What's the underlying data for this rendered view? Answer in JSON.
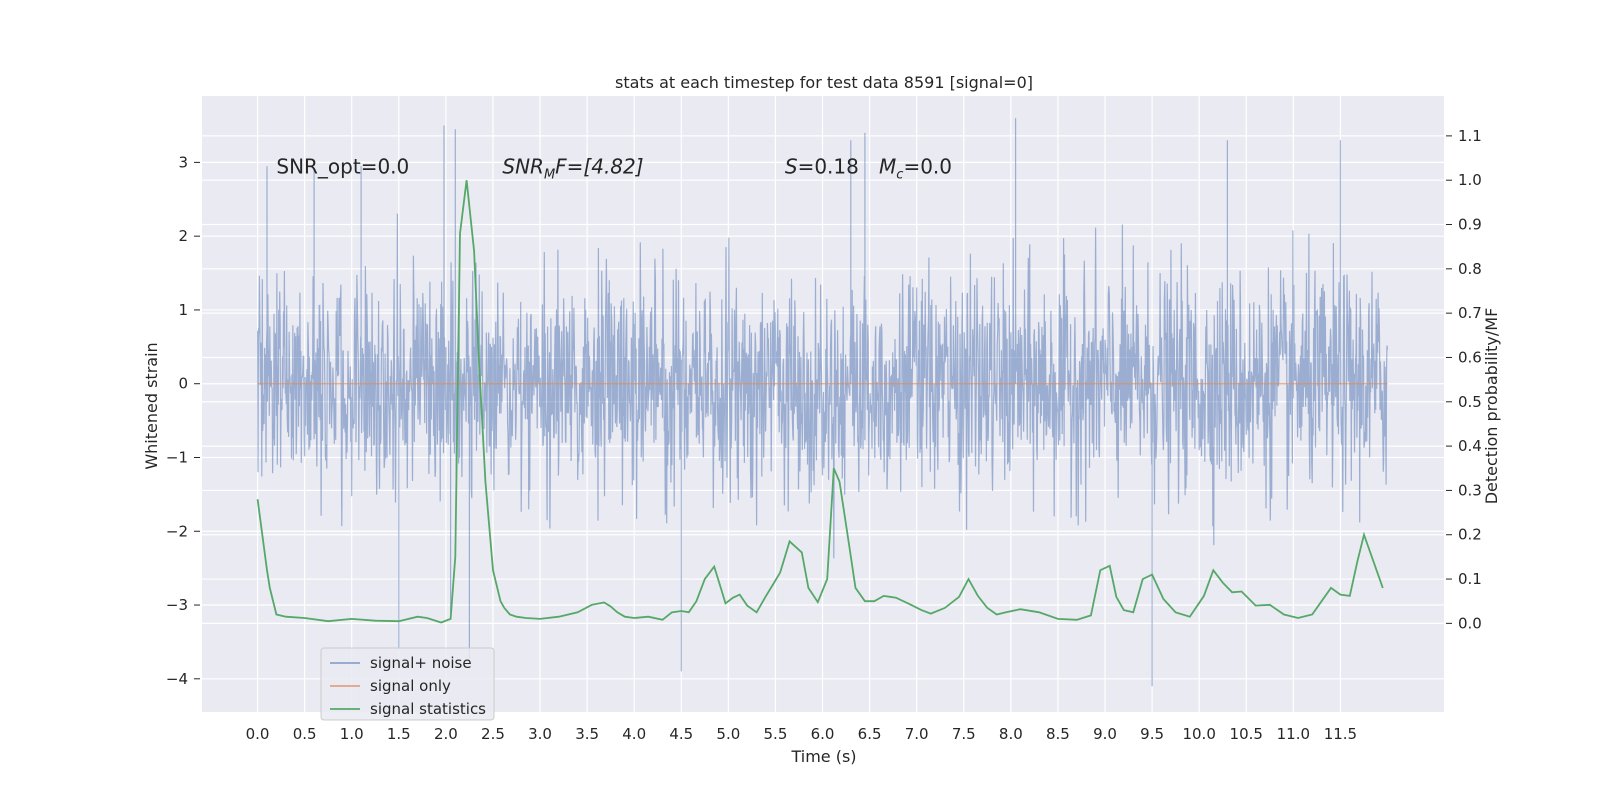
{
  "chart_data": {
    "type": "line",
    "title": "stats at each timestep for test data 8591 [signal=0]",
    "xlabel": "Time (s)",
    "ylabel": "Whitened strain",
    "y2label": "Detection probability/MF",
    "xlim": [
      -0.59,
      12.6
    ],
    "ylim": [
      -4.45,
      3.9
    ],
    "y2lim": [
      -0.2,
      1.19
    ],
    "xticks": [
      0.0,
      0.5,
      1.0,
      1.5,
      2.0,
      2.5,
      3.0,
      3.5,
      4.0,
      4.5,
      5.0,
      5.5,
      6.0,
      6.5,
      7.0,
      7.5,
      8.0,
      8.5,
      9.0,
      9.5,
      10.0,
      10.5,
      11.0,
      11.5
    ],
    "xticklabels": [
      "0.0",
      "0.5",
      "1.0",
      "1.5",
      "2.0",
      "2.5",
      "3.0",
      "3.5",
      "4.0",
      "4.5",
      "5.0",
      "5.5",
      "6.0",
      "6.5",
      "7.0",
      "7.5",
      "8.0",
      "8.5",
      "9.0",
      "9.5",
      "10.0",
      "10.5",
      "11.0",
      "11.5"
    ],
    "yticks": [
      -4,
      -3,
      -2,
      -1,
      0,
      1,
      2,
      3
    ],
    "yticklabels": [
      "−4",
      "−3",
      "−2",
      "−1",
      "0",
      "1",
      "2",
      "3"
    ],
    "y2ticks": [
      0.0,
      0.1,
      0.2,
      0.3,
      0.4,
      0.5,
      0.6,
      0.7,
      0.8,
      0.9,
      1.0,
      1.1
    ],
    "y2ticklabels": [
      "0.0",
      "0.1",
      "0.2",
      "0.3",
      "0.4",
      "0.5",
      "0.6",
      "0.7",
      "0.8",
      "0.9",
      "1.0",
      "1.1"
    ],
    "grid": true,
    "legend_position": "lower-left",
    "annotations": [
      {
        "text": "SNR_opt=0.0",
        "x": 0.2,
        "y": 2.85
      },
      {
        "text": "SNR",
        "sub": "M",
        "suffix": "F=[4.82]",
        "italic": true,
        "x": 2.6,
        "y": 2.85
      },
      {
        "text": "S",
        "suffix": "=0.18",
        "italic": true,
        "x": 5.6,
        "y": 2.85
      },
      {
        "text": "M",
        "sub": "c",
        "suffix": "=0.0",
        "italic": true,
        "x": 6.6,
        "y": 2.85
      }
    ],
    "series": [
      {
        "name": "signal+ noise",
        "axis": "left",
        "color": "#4c72b0",
        "kind": "noise-trace",
        "x_range": [
          0.0,
          12.0
        ],
        "typical_band": [
          -1.6,
          1.6
        ],
        "extremes": [
          {
            "x": 0.1,
            "y": 2.95
          },
          {
            "x": 0.6,
            "y": 2.9
          },
          {
            "x": 1.1,
            "y": 2.95
          },
          {
            "x": 1.5,
            "y": -3.6
          },
          {
            "x": 1.98,
            "y": 3.5
          },
          {
            "x": 2.05,
            "y": -3.1
          },
          {
            "x": 2.1,
            "y": 3.45
          },
          {
            "x": 2.25,
            "y": -3.75
          },
          {
            "x": 4.5,
            "y": -3.9
          },
          {
            "x": 6.3,
            "y": 3.3
          },
          {
            "x": 6.45,
            "y": 3.4
          },
          {
            "x": 8.05,
            "y": 3.6
          },
          {
            "x": 9.5,
            "y": -4.1
          },
          {
            "x": 10.3,
            "y": 3.3
          },
          {
            "x": 11.5,
            "y": 3.3
          }
        ]
      },
      {
        "name": "signal only",
        "axis": "left",
        "color": "#dd8452",
        "x": [
          0.0,
          12.0
        ],
        "y": [
          0.0,
          0.0
        ]
      },
      {
        "name": "signal statistics",
        "axis": "right",
        "color": "#55a868",
        "x": [
          0.0,
          0.1,
          0.13,
          0.2,
          0.3,
          0.5,
          0.75,
          1.0,
          1.25,
          1.5,
          1.7,
          1.8,
          1.95,
          2.05,
          2.1,
          2.15,
          2.22,
          2.3,
          2.35,
          2.42,
          2.5,
          2.58,
          2.62,
          2.68,
          2.75,
          2.85,
          3.0,
          3.2,
          3.4,
          3.55,
          3.68,
          3.75,
          3.82,
          3.9,
          4.0,
          4.15,
          4.3,
          4.4,
          4.5,
          4.58,
          4.66,
          4.75,
          4.85,
          4.92,
          4.97,
          5.05,
          5.12,
          5.2,
          5.3,
          5.4,
          5.48,
          5.55,
          5.65,
          5.78,
          5.85,
          5.95,
          6.05,
          6.12,
          6.18,
          6.28,
          6.35,
          6.45,
          6.55,
          6.65,
          6.78,
          6.92,
          7.05,
          7.15,
          7.3,
          7.45,
          7.55,
          7.65,
          7.75,
          7.85,
          7.95,
          8.1,
          8.3,
          8.5,
          8.7,
          8.85,
          8.95,
          9.05,
          9.12,
          9.2,
          9.3,
          9.4,
          9.5,
          9.62,
          9.75,
          9.9,
          10.05,
          10.15,
          10.25,
          10.35,
          10.45,
          10.6,
          10.75,
          10.9,
          11.05,
          11.2,
          11.3,
          11.4,
          11.5,
          11.6,
          11.68,
          11.75,
          11.85,
          11.95
        ],
        "y": [
          0.28,
          0.12,
          0.08,
          0.02,
          0.015,
          0.012,
          0.005,
          0.01,
          0.006,
          0.005,
          0.015,
          0.012,
          0.002,
          0.01,
          0.15,
          0.88,
          1.0,
          0.84,
          0.6,
          0.32,
          0.12,
          0.05,
          0.035,
          0.02,
          0.015,
          0.012,
          0.01,
          0.015,
          0.025,
          0.042,
          0.047,
          0.038,
          0.025,
          0.015,
          0.012,
          0.015,
          0.008,
          0.025,
          0.028,
          0.025,
          0.05,
          0.1,
          0.128,
          0.08,
          0.045,
          0.058,
          0.065,
          0.04,
          0.025,
          0.062,
          0.09,
          0.115,
          0.185,
          0.16,
          0.08,
          0.048,
          0.1,
          0.35,
          0.32,
          0.18,
          0.08,
          0.05,
          0.05,
          0.062,
          0.058,
          0.044,
          0.03,
          0.022,
          0.035,
          0.06,
          0.1,
          0.062,
          0.035,
          0.02,
          0.025,
          0.032,
          0.025,
          0.01,
          0.008,
          0.018,
          0.12,
          0.13,
          0.06,
          0.03,
          0.025,
          0.1,
          0.11,
          0.055,
          0.025,
          0.015,
          0.062,
          0.12,
          0.092,
          0.07,
          0.072,
          0.04,
          0.042,
          0.02,
          0.012,
          0.02,
          0.05,
          0.08,
          0.065,
          0.062,
          0.14,
          0.2,
          0.14,
          0.08
        ]
      }
    ]
  }
}
